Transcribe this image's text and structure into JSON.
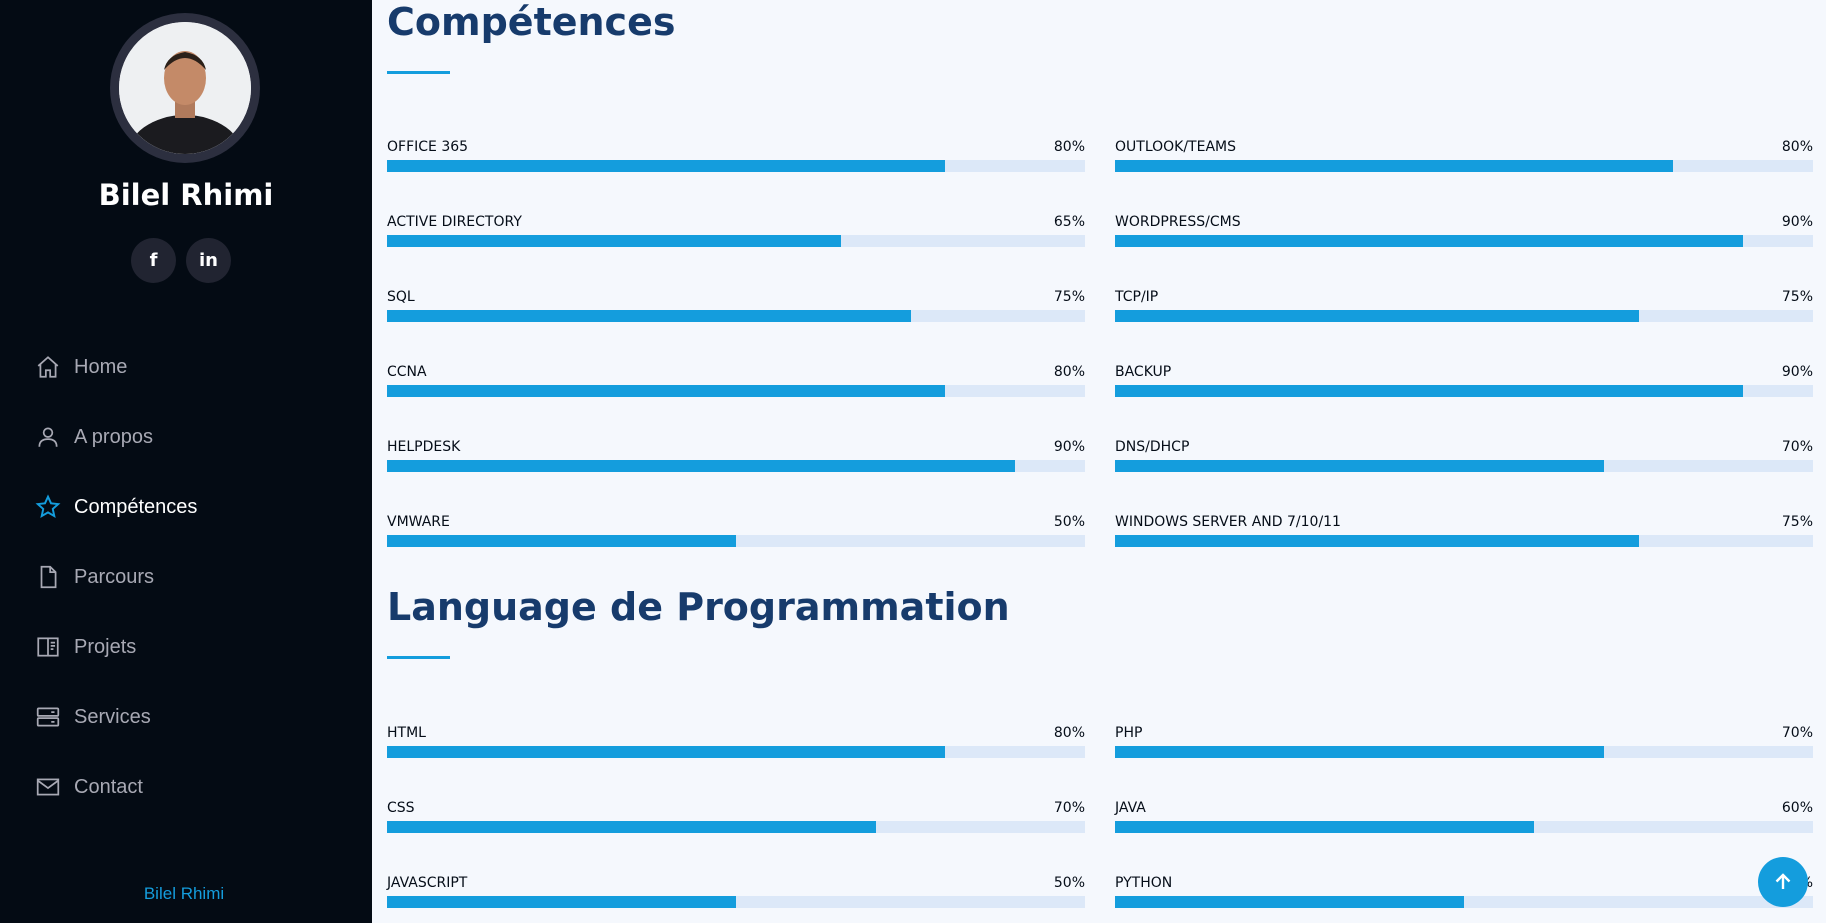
{
  "profile": {
    "name": "Bilel Rhimi",
    "social": [
      {
        "label": "f",
        "icon": "facebook-icon"
      },
      {
        "label": "in",
        "icon": "linkedin-icon"
      }
    ]
  },
  "nav": {
    "items": [
      {
        "label": "Home",
        "icon": "home-icon"
      },
      {
        "label": "A propos",
        "icon": "person-icon"
      },
      {
        "label": "Compétences",
        "icon": "star-icon",
        "active": true
      },
      {
        "label": "Parcours",
        "icon": "file-icon"
      },
      {
        "label": "Projets",
        "icon": "book-icon"
      },
      {
        "label": "Services",
        "icon": "server-icon"
      },
      {
        "label": "Contact",
        "icon": "envelope-icon"
      }
    ]
  },
  "footer": {
    "name": "Bilel Rhimi"
  },
  "skills": {
    "title": "Compétences",
    "items": [
      {
        "name": "OFFICE 365",
        "value": 80,
        "label": "80%"
      },
      {
        "name": "OUTLOOK/TEAMS",
        "value": 80,
        "label": "80%"
      },
      {
        "name": "ACTIVE DIRECTORY",
        "value": 65,
        "label": "65%"
      },
      {
        "name": "WORDPRESS/CMS",
        "value": 90,
        "label": "90%"
      },
      {
        "name": "SQL",
        "value": 75,
        "label": "75%"
      },
      {
        "name": "TCP/IP",
        "value": 75,
        "label": "75%"
      },
      {
        "name": "CCNA",
        "value": 80,
        "label": "80%"
      },
      {
        "name": "BACKUP",
        "value": 90,
        "label": "90%"
      },
      {
        "name": "HELPDESK",
        "value": 90,
        "label": "90%"
      },
      {
        "name": "DNS/DHCP",
        "value": 70,
        "label": "70%"
      },
      {
        "name": "VMWARE",
        "value": 50,
        "label": "50%"
      },
      {
        "name": "WINDOWS SERVER AND 7/10/11",
        "value": 75,
        "label": "75%"
      }
    ]
  },
  "programming": {
    "title": "Language de Programmation",
    "items": [
      {
        "name": "HTML",
        "value": 80,
        "label": "80%"
      },
      {
        "name": "PHP",
        "value": 70,
        "label": "70%"
      },
      {
        "name": "CSS",
        "value": 70,
        "label": "70%"
      },
      {
        "name": "JAVA",
        "value": 60,
        "label": "60%"
      },
      {
        "name": "JAVASCRIPT",
        "value": 50,
        "label": "50%"
      },
      {
        "name": "PYTHON",
        "value": 50,
        "label": "%"
      }
    ]
  },
  "colors": {
    "accent": "#149ddd",
    "sidebar_bg": "#040b14",
    "heading": "#173b6c",
    "track": "#dce8f8"
  }
}
